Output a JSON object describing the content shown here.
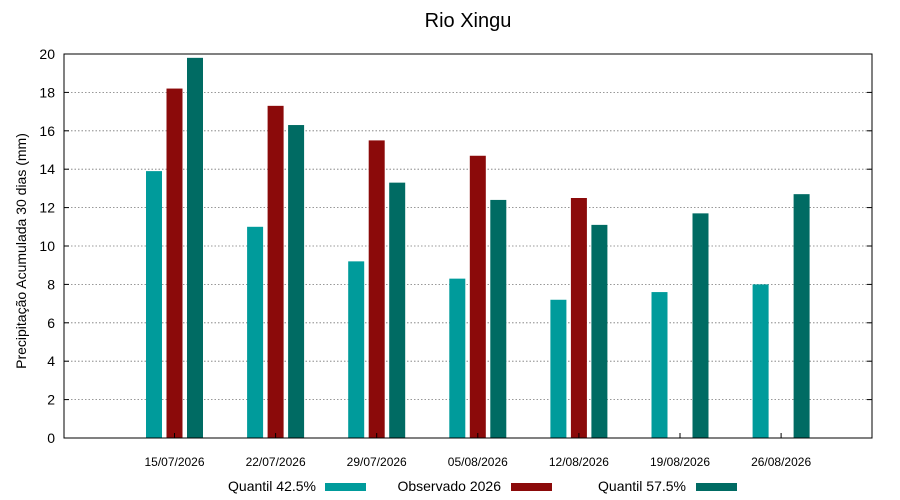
{
  "chart_data": {
    "type": "bar",
    "title": "Rio Xingu",
    "ylabel": "Precipitação Acumulada 30 dias (mm)",
    "xlabel": "",
    "ylim": [
      0,
      20
    ],
    "yticks": [
      0,
      2,
      4,
      6,
      8,
      10,
      12,
      14,
      16,
      18,
      20
    ],
    "grid": true,
    "legend_position": "bottom",
    "categories": [
      "15/07/2026",
      "22/07/2026",
      "29/07/2026",
      "05/08/2026",
      "12/08/2026",
      "19/08/2026",
      "26/08/2026"
    ],
    "series": [
      {
        "name": "Quantil 42.5%",
        "color": "#009b9b",
        "values": [
          13.9,
          11.0,
          9.2,
          8.3,
          7.2,
          7.6,
          8.0
        ]
      },
      {
        "name": "Observado 2026",
        "color": "#8b0a0a",
        "values": [
          18.2,
          17.3,
          15.5,
          14.7,
          12.5,
          null,
          null
        ]
      },
      {
        "name": "Quantil 57.5%",
        "color": "#006b63",
        "values": [
          19.8,
          16.3,
          13.3,
          12.4,
          11.1,
          11.7,
          12.7
        ]
      }
    ]
  }
}
